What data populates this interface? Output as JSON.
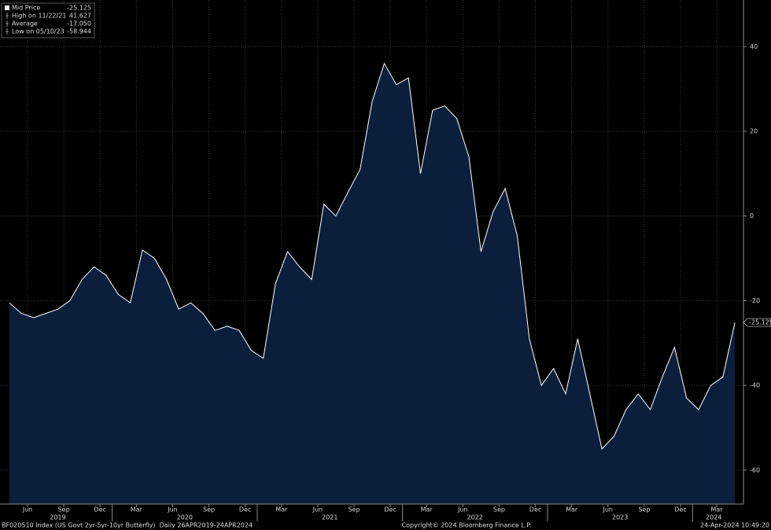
{
  "chart_data": {
    "type": "area",
    "color": "#ffffff",
    "fill": "#0b1f3d",
    "grid": true,
    "x": [
      "2019-04",
      "2019-05",
      "2019-06",
      "2019-07",
      "2019-08",
      "2019-09",
      "2019-10",
      "2019-11",
      "2019-12",
      "2020-01",
      "2020-02",
      "2020-03",
      "2020-04",
      "2020-05",
      "2020-06",
      "2020-07",
      "2020-08",
      "2020-09",
      "2020-10",
      "2020-11",
      "2020-12",
      "2021-01",
      "2021-02",
      "2021-03",
      "2021-04",
      "2021-05",
      "2021-06",
      "2021-07",
      "2021-08",
      "2021-09",
      "2021-10",
      "2021-11",
      "2021-12",
      "2022-01",
      "2022-02",
      "2022-03",
      "2022-04",
      "2022-05",
      "2022-06",
      "2022-07",
      "2022-08",
      "2022-09",
      "2022-10",
      "2022-11",
      "2022-12",
      "2023-01",
      "2023-02",
      "2023-03",
      "2023-04",
      "2023-05",
      "2023-06",
      "2023-07",
      "2023-08",
      "2023-09",
      "2023-10",
      "2023-11",
      "2023-12",
      "2024-01",
      "2024-02",
      "2024-03",
      "2024-04"
    ],
    "values": [
      -20.5,
      -23,
      -24,
      -23,
      -22,
      -20,
      -15,
      -12,
      -14,
      -18.5,
      -20.5,
      -8,
      -10,
      -15,
      -22,
      -20.5,
      -23,
      -27,
      -26,
      -27,
      -31.7,
      -33.6,
      -16,
      -8.4,
      -12,
      -15,
      2.8,
      0,
      5.6,
      11,
      27,
      36,
      31,
      32.6,
      10,
      25,
      26,
      23,
      14,
      -8.4,
      1,
      6.5,
      -4.7,
      -29,
      -40,
      -36,
      -42,
      -29,
      -42,
      -55,
      -52,
      -45.7,
      -42,
      -45.7,
      -38,
      -31,
      -43,
      -45.7,
      -40,
      -38,
      -25.125
    ],
    "ylim": [
      -68,
      51
    ],
    "yticks": [
      -60,
      -40,
      -20,
      0,
      20,
      40
    ],
    "last_value": -25.125,
    "xticks": [
      {
        "value": "2019-06",
        "label": "Jun"
      },
      {
        "value": "2019-09",
        "label": "Sep"
      },
      {
        "value": "2019-12",
        "label": "Dec"
      },
      {
        "value": "2020-03",
        "label": "Mar"
      },
      {
        "value": "2020-06",
        "label": "Jun"
      },
      {
        "value": "2020-09",
        "label": "Sep"
      },
      {
        "value": "2020-12",
        "label": "Dec"
      },
      {
        "value": "2021-03",
        "label": "Mar"
      },
      {
        "value": "2021-06",
        "label": "Jun"
      },
      {
        "value": "2021-09",
        "label": "Sep"
      },
      {
        "value": "2021-12",
        "label": "Dec"
      },
      {
        "value": "2022-03",
        "label": "Mar"
      },
      {
        "value": "2022-06",
        "label": "Jun"
      },
      {
        "value": "2022-09",
        "label": "Sep"
      },
      {
        "value": "2022-12",
        "label": "Dec"
      },
      {
        "value": "2023-03",
        "label": "Mar"
      },
      {
        "value": "2023-06",
        "label": "Jun"
      },
      {
        "value": "2023-09",
        "label": "Sep"
      },
      {
        "value": "2023-12",
        "label": "Dec"
      },
      {
        "value": "2024-03",
        "label": "Mar"
      }
    ],
    "years": [
      2019,
      2020,
      2021,
      2022,
      2023,
      2024
    ],
    "legend": [
      {
        "name": "Mid Price",
        "value": -25.125
      },
      {
        "name": "High on 11/22/21",
        "value": 41.627
      },
      {
        "name": "Average",
        "value": -17.05,
        "label": "-17.050"
      },
      {
        "name": "Low on 05/10/23",
        "value": -58.944
      }
    ],
    "footer_left": "BF020510 Index (US Govt 2yr-5yr-10yr Butterfly)  Daily 26APR2019-24APR2024",
    "footer_center": "Copyright© 2024 Bloomberg Finance L.P.",
    "footer_right": "24-Apr-2024 10:49:20"
  }
}
